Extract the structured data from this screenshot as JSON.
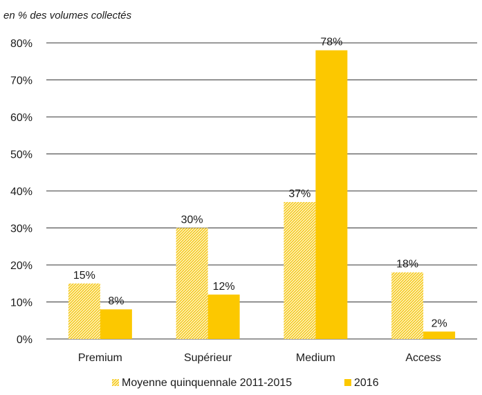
{
  "chart_data": {
    "type": "bar",
    "subtitle": "en % des volumes collectés",
    "categories": [
      "Premium",
      "Supérieur",
      "Medium",
      "Access"
    ],
    "series": [
      {
        "name": "Moyenne quinquennale 2011-2015",
        "values": [
          15,
          30,
          37,
          18
        ],
        "labels": [
          "15%",
          "30%",
          "37%",
          "18%"
        ],
        "color": "#fdd667",
        "pattern": "diagonal-hatch"
      },
      {
        "name": "2016",
        "values": [
          8,
          12,
          78,
          2
        ],
        "labels": [
          "8%",
          "12%",
          "78%",
          "2%"
        ],
        "color": "#fcc800",
        "pattern": "solid"
      }
    ],
    "ylim": [
      0,
      80
    ],
    "yticks": [
      0,
      10,
      20,
      30,
      40,
      50,
      60,
      70,
      80
    ],
    "ytick_labels": [
      "0%",
      "10%",
      "20%",
      "30%",
      "40%",
      "50%",
      "60%",
      "70%",
      "80%"
    ],
    "grid": true,
    "legend_position": "bottom"
  }
}
